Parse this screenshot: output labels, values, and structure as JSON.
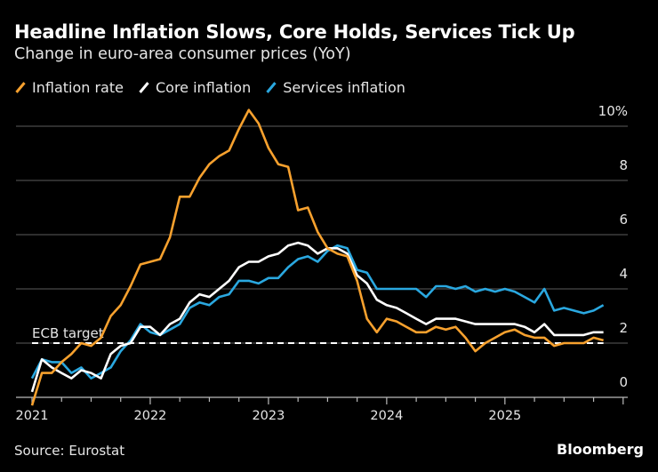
{
  "header": {
    "title": "Headline Inflation Slows, Core Holds, Services Tick Up",
    "subtitle": "Change in euro-area consumer prices (YoY)"
  },
  "footer": {
    "source": "Source: Eurostat",
    "brand": "Bloomberg"
  },
  "chart_data": {
    "type": "line",
    "title": "Headline Inflation Slows, Core Holds, Services Tick Up",
    "subtitle": "Change in euro-area consumer prices (YoY)",
    "x_start": "2020-12",
    "x_end": "2025-10",
    "x_ticks": [
      "2021",
      "2022",
      "2023",
      "2024",
      "2025"
    ],
    "y_ticks": [
      "0",
      "2",
      "4",
      "6",
      "8",
      "10%"
    ],
    "ylim": [
      0,
      10
    ],
    "grid": true,
    "legend_position": "top-left",
    "annotation": {
      "label": "ECB target",
      "value": 2
    },
    "series": [
      {
        "name": "Inflation rate",
        "color": "#f7a12e",
        "values": [
          -0.3,
          0.9,
          0.9,
          1.3,
          1.6,
          2.0,
          1.9,
          2.2,
          3.0,
          3.4,
          4.1,
          4.9,
          5.0,
          5.1,
          5.9,
          7.4,
          7.4,
          8.1,
          8.6,
          8.9,
          9.1,
          9.9,
          10.6,
          10.1,
          9.2,
          8.6,
          8.5,
          6.9,
          7.0,
          6.1,
          5.5,
          5.3,
          5.2,
          4.3,
          2.9,
          2.4,
          2.9,
          2.8,
          2.6,
          2.4,
          2.4,
          2.6,
          2.5,
          2.6,
          2.2,
          1.7,
          2.0,
          2.2,
          2.4,
          2.5,
          2.3,
          2.2,
          2.2,
          1.9,
          2.0,
          2.0,
          2.0,
          2.2,
          2.1
        ]
      },
      {
        "name": "Core inflation",
        "color": "#ffffff",
        "values": [
          0.2,
          1.4,
          1.1,
          0.9,
          0.7,
          1.0,
          0.9,
          0.7,
          1.6,
          1.9,
          2.0,
          2.6,
          2.6,
          2.3,
          2.7,
          2.9,
          3.5,
          3.8,
          3.7,
          4.0,
          4.3,
          4.8,
          5.0,
          5.0,
          5.2,
          5.3,
          5.6,
          5.7,
          5.6,
          5.3,
          5.5,
          5.5,
          5.3,
          4.5,
          4.2,
          3.6,
          3.4,
          3.3,
          3.1,
          2.9,
          2.7,
          2.9,
          2.9,
          2.9,
          2.8,
          2.7,
          2.7,
          2.7,
          2.7,
          2.7,
          2.6,
          2.4,
          2.7,
          2.3,
          2.3,
          2.3,
          2.3,
          2.4,
          2.4
        ]
      },
      {
        "name": "Services inflation",
        "color": "#2aa8e0",
        "values": [
          0.7,
          1.4,
          1.3,
          1.3,
          0.9,
          1.1,
          0.7,
          0.9,
          1.1,
          1.7,
          2.1,
          2.7,
          2.4,
          2.3,
          2.5,
          2.7,
          3.3,
          3.5,
          3.4,
          3.7,
          3.8,
          4.3,
          4.3,
          4.2,
          4.4,
          4.4,
          4.8,
          5.1,
          5.2,
          5.0,
          5.4,
          5.6,
          5.5,
          4.7,
          4.6,
          4.0,
          4.0,
          4.0,
          4.0,
          4.0,
          3.7,
          4.1,
          4.1,
          4.0,
          4.1,
          3.9,
          4.0,
          3.9,
          4.0,
          3.9,
          3.7,
          3.5,
          4.0,
          3.2,
          3.3,
          3.2,
          3.1,
          3.2,
          3.4
        ]
      }
    ]
  }
}
